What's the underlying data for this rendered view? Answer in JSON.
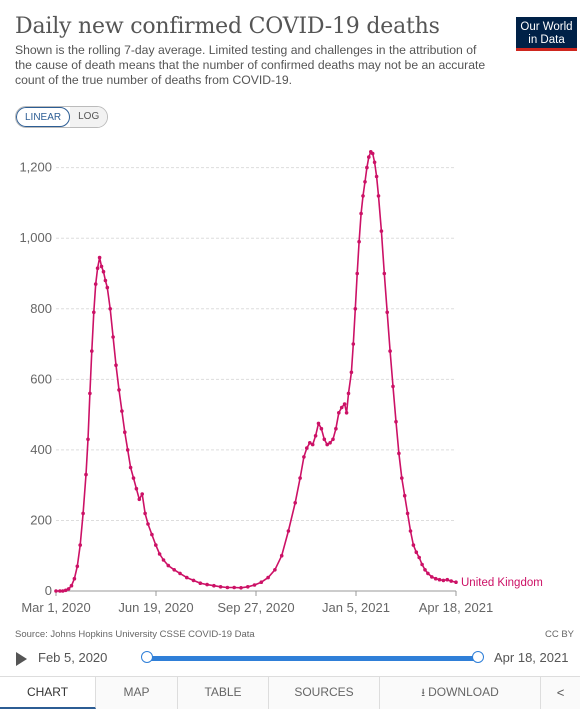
{
  "header": {
    "title": "Daily new confirmed COVID-19 deaths",
    "subtitle": "Shown is the rolling 7-day average. Limited testing and challenges in the attribution of the cause of death means that the number of confirmed deaths may not be an accurate count of the true number of deaths from COVID-19.",
    "logo_line1": "Our World",
    "logo_line2": "in Data"
  },
  "scale_toggle": {
    "linear_label": "LINEAR",
    "log_label": "LOG",
    "active": "linear"
  },
  "chart_data": {
    "type": "line",
    "ylim": [
      0,
      1250
    ],
    "yticks": [
      0,
      200,
      400,
      600,
      800,
      1000,
      1200
    ],
    "ytick_labels": [
      "0",
      "200",
      "400",
      "600",
      "800",
      "1,000",
      "1,200"
    ],
    "xlim": [
      "2020-03-01",
      "2021-04-18"
    ],
    "xtick_labels": [
      "Mar 1, 2020",
      "Jun 19, 2020",
      "Sep 27, 2020",
      "Jan 5, 2021",
      "Apr 18, 2021"
    ],
    "grid": true,
    "color": "#cc1166",
    "series": [
      {
        "name": "United Kingdom",
        "points": [
          [
            "2020-03-01",
            0
          ],
          [
            "2020-03-05",
            0
          ],
          [
            "2020-03-08",
            0
          ],
          [
            "2020-03-11",
            2
          ],
          [
            "2020-03-14",
            6
          ],
          [
            "2020-03-17",
            15
          ],
          [
            "2020-03-20",
            35
          ],
          [
            "2020-03-23",
            70
          ],
          [
            "2020-03-26",
            130
          ],
          [
            "2020-03-29",
            220
          ],
          [
            "2020-04-01",
            330
          ],
          [
            "2020-04-03",
            430
          ],
          [
            "2020-04-05",
            560
          ],
          [
            "2020-04-07",
            680
          ],
          [
            "2020-04-09",
            790
          ],
          [
            "2020-04-11",
            870
          ],
          [
            "2020-04-13",
            915
          ],
          [
            "2020-04-15",
            945
          ],
          [
            "2020-04-17",
            920
          ],
          [
            "2020-04-19",
            905
          ],
          [
            "2020-04-21",
            880
          ],
          [
            "2020-04-23",
            860
          ],
          [
            "2020-04-26",
            800
          ],
          [
            "2020-04-29",
            720
          ],
          [
            "2020-05-02",
            640
          ],
          [
            "2020-05-05",
            570
          ],
          [
            "2020-05-08",
            510
          ],
          [
            "2020-05-11",
            450
          ],
          [
            "2020-05-14",
            400
          ],
          [
            "2020-05-17",
            350
          ],
          [
            "2020-05-20",
            320
          ],
          [
            "2020-05-23",
            290
          ],
          [
            "2020-05-26",
            260
          ],
          [
            "2020-05-29",
            275
          ],
          [
            "2020-06-01",
            220
          ],
          [
            "2020-06-04",
            190
          ],
          [
            "2020-06-08",
            160
          ],
          [
            "2020-06-12",
            130
          ],
          [
            "2020-06-16",
            105
          ],
          [
            "2020-06-20",
            88
          ],
          [
            "2020-06-25",
            72
          ],
          [
            "2020-07-01",
            60
          ],
          [
            "2020-07-07",
            50
          ],
          [
            "2020-07-14",
            38
          ],
          [
            "2020-07-21",
            30
          ],
          [
            "2020-07-28",
            22
          ],
          [
            "2020-08-04",
            18
          ],
          [
            "2020-08-11",
            15
          ],
          [
            "2020-08-18",
            12
          ],
          [
            "2020-08-25",
            10
          ],
          [
            "2020-09-01",
            10
          ],
          [
            "2020-09-08",
            9
          ],
          [
            "2020-09-15",
            12
          ],
          [
            "2020-09-22",
            17
          ],
          [
            "2020-09-29",
            25
          ],
          [
            "2020-10-06",
            38
          ],
          [
            "2020-10-13",
            60
          ],
          [
            "2020-10-20",
            100
          ],
          [
            "2020-10-27",
            170
          ],
          [
            "2020-11-03",
            250
          ],
          [
            "2020-11-08",
            320
          ],
          [
            "2020-11-12",
            380
          ],
          [
            "2020-11-15",
            405
          ],
          [
            "2020-11-18",
            420
          ],
          [
            "2020-11-21",
            415
          ],
          [
            "2020-11-24",
            440
          ],
          [
            "2020-11-27",
            475
          ],
          [
            "2020-11-30",
            460
          ],
          [
            "2020-12-03",
            430
          ],
          [
            "2020-12-06",
            415
          ],
          [
            "2020-12-09",
            420
          ],
          [
            "2020-12-12",
            430
          ],
          [
            "2020-12-15",
            460
          ],
          [
            "2020-12-18",
            505
          ],
          [
            "2020-12-21",
            520
          ],
          [
            "2020-12-24",
            530
          ],
          [
            "2020-12-26",
            505
          ],
          [
            "2020-12-28",
            560
          ],
          [
            "2020-12-31",
            620
          ],
          [
            "2021-01-02",
            700
          ],
          [
            "2021-01-04",
            800
          ],
          [
            "2021-01-06",
            900
          ],
          [
            "2021-01-08",
            990
          ],
          [
            "2021-01-10",
            1070
          ],
          [
            "2021-01-12",
            1120
          ],
          [
            "2021-01-14",
            1160
          ],
          [
            "2021-01-16",
            1200
          ],
          [
            "2021-01-18",
            1230
          ],
          [
            "2021-01-20",
            1245
          ],
          [
            "2021-01-22",
            1240
          ],
          [
            "2021-01-24",
            1215
          ],
          [
            "2021-01-26",
            1175
          ],
          [
            "2021-01-28",
            1120
          ],
          [
            "2021-01-31",
            1020
          ],
          [
            "2021-02-03",
            900
          ],
          [
            "2021-02-06",
            790
          ],
          [
            "2021-02-09",
            680
          ],
          [
            "2021-02-12",
            580
          ],
          [
            "2021-02-15",
            480
          ],
          [
            "2021-02-18",
            390
          ],
          [
            "2021-02-21",
            320
          ],
          [
            "2021-02-24",
            270
          ],
          [
            "2021-02-27",
            220
          ],
          [
            "2021-03-02",
            170
          ],
          [
            "2021-03-05",
            130
          ],
          [
            "2021-03-08",
            110
          ],
          [
            "2021-03-11",
            95
          ],
          [
            "2021-03-14",
            75
          ],
          [
            "2021-03-17",
            60
          ],
          [
            "2021-03-20",
            50
          ],
          [
            "2021-03-24",
            40
          ],
          [
            "2021-03-28",
            35
          ],
          [
            "2021-04-01",
            32
          ],
          [
            "2021-04-05",
            30
          ],
          [
            "2021-04-09",
            32
          ],
          [
            "2021-04-13",
            28
          ],
          [
            "2021-04-18",
            25
          ]
        ]
      }
    ]
  },
  "footer": {
    "source": "Source: Johns Hopkins University CSSE COVID-19 Data",
    "license": "CC BY"
  },
  "timeline": {
    "start_label": "Feb 5, 2020",
    "end_label": "Apr 18, 2021",
    "start_fraction": 0,
    "end_fraction": 1
  },
  "tabs": [
    {
      "label": "CHART",
      "active": true
    },
    {
      "label": "MAP",
      "active": false
    },
    {
      "label": "TABLE",
      "active": false
    },
    {
      "label": "SOURCES",
      "active": false
    },
    {
      "label": "DOWNLOAD",
      "active": false
    }
  ]
}
